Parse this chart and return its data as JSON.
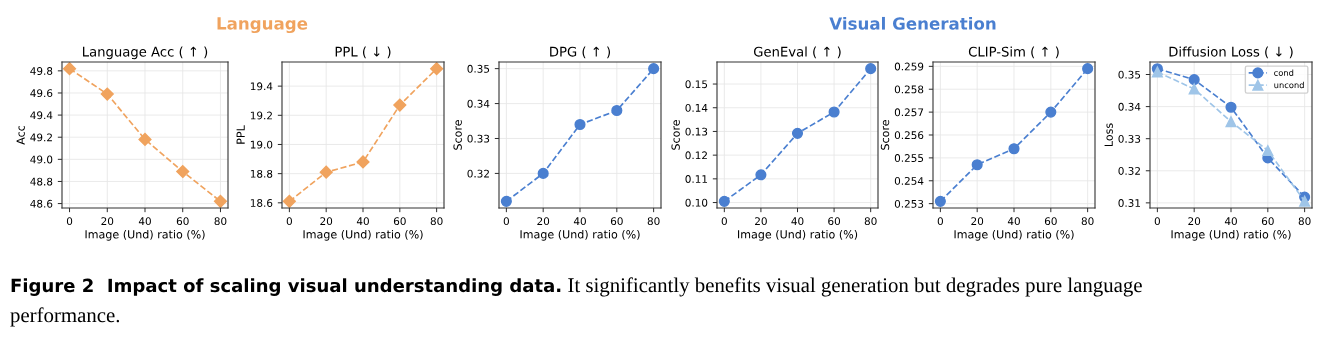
{
  "chart_data": [
    {
      "type": "line",
      "title": "Language Acc ( ↑ )",
      "xlabel": "Image (Und) ratio (%)",
      "ylabel": "Acc",
      "x": [
        0,
        20,
        40,
        60,
        80
      ],
      "xlim": [
        -4,
        84
      ],
      "xticks": [
        0,
        20,
        40,
        60,
        80
      ],
      "ylim": [
        48.56,
        49.88
      ],
      "yticks": [
        48.6,
        48.8,
        {
          "value": 49.0,
          "label": "49.0"
        },
        49.2,
        49.4,
        49.6,
        49.8
      ],
      "grid": true,
      "line_style": "dashed",
      "series": [
        {
          "color": "#f0a35e",
          "marker": "diamond",
          "values": [
            49.82,
            49.59,
            49.18,
            48.89,
            48.62
          ]
        }
      ],
      "annotations": [
        "Figure 2  Impact of scaling visual understanding data.",
        "It significantly benefits visual generation but degrades pure language",
        "performance."
      ]
    },
    {
      "type": "line",
      "title": "PPL ( ↓ )",
      "xlabel": "Image (Und) ratio (%)",
      "ylabel": "PPL",
      "x": [
        0,
        20,
        40,
        60,
        80
      ],
      "xlim": [
        -4,
        84
      ],
      "xticks": [
        0,
        20,
        40,
        60,
        80
      ],
      "ylim": [
        18.5645,
        19.5655
      ],
      "yticks": [
        18.6,
        18.8,
        {
          "value": 19.0,
          "label": "19.0"
        },
        19.2,
        19.4
      ],
      "grid": true,
      "line_style": "dashed",
      "series": [
        {
          "color": "#f0a35e",
          "marker": "diamond",
          "values": [
            18.61,
            18.81,
            18.88,
            19.27,
            19.52
          ]
        }
      ],
      "annotations": [
        "Language"
      ]
    },
    {
      "type": "line",
      "title": "DPG ( ↑ )",
      "xlabel": "Image (Und) ratio (%)",
      "ylabel": "Score",
      "x": [
        0,
        20,
        40,
        60,
        80
      ],
      "xlim": [
        -4,
        84
      ],
      "xticks": [
        0,
        20,
        40,
        60,
        80
      ],
      "ylim": [
        0.3101,
        0.3519
      ],
      "yticks": [
        0.32,
        0.33,
        0.34,
        0.35
      ],
      "grid": true,
      "line_style": "dashed",
      "series": [
        {
          "color": "#4a7fd0",
          "marker": "circle",
          "values": [
            0.312,
            0.32,
            0.334,
            0.338,
            0.35
          ]
        }
      ]
    },
    {
      "type": "line",
      "title": "GenEval ( ↑ )",
      "xlabel": "Image (Und) ratio (%)",
      "ylabel": "Score",
      "x": [
        0,
        20,
        40,
        60,
        80
      ],
      "xlim": [
        -4,
        84
      ],
      "xticks": [
        0,
        20,
        40,
        60,
        80
      ],
      "ylim": [
        0.0977,
        0.1593
      ],
      "yticks": [
        {
          "value": 0.1,
          "label": "0.10"
        },
        0.11,
        0.12,
        0.13,
        0.14,
        0.15
      ],
      "grid": true,
      "line_style": "dashed",
      "series": [
        {
          "color": "#4a7fd0",
          "marker": "circle",
          "values": [
            0.1005,
            0.1117,
            0.1292,
            0.1382,
            0.1565
          ]
        }
      ]
    },
    {
      "type": "line",
      "title": "CLIP-Sim ( ↑ )",
      "xlabel": "Image (Und) ratio (%)",
      "ylabel": "Score",
      "x": [
        0,
        20,
        40,
        60,
        80
      ],
      "xlim": [
        -4,
        84
      ],
      "xticks": [
        0,
        20,
        40,
        60,
        80
      ],
      "ylim": [
        0.25281,
        0.25919
      ],
      "yticks": [
        0.253,
        0.254,
        0.255,
        0.256,
        0.257,
        0.258,
        0.259
      ],
      "grid": true,
      "line_style": "dashed",
      "series": [
        {
          "color": "#4a7fd0",
          "marker": "circle",
          "values": [
            0.2531,
            0.2547,
            0.2554,
            0.257,
            0.2589
          ]
        }
      ],
      "annotations": [
        "Visual Generation"
      ]
    },
    {
      "type": "line",
      "title": "Diffusion Loss ( ↓ )",
      "xlabel": "Image (Und) ratio (%)",
      "ylabel": "Loss",
      "x": [
        0,
        20,
        40,
        60,
        80
      ],
      "xlim": [
        -4,
        84
      ],
      "xticks": [
        0,
        20,
        40,
        60,
        80
      ],
      "ylim": [
        0.3084,
        0.3539
      ],
      "yticks": [
        0.31,
        0.32,
        0.33,
        0.34,
        0.35
      ],
      "grid": true,
      "line_style": "dashed",
      "legend": "top right",
      "series": [
        {
          "name": "cond",
          "color": "#4a7fd0",
          "marker": "circle",
          "values": [
            0.3518,
            0.3484,
            0.3398,
            0.324,
            0.3118
          ]
        },
        {
          "name": "uncond",
          "color": "#9fc5e8",
          "marker": "triangle",
          "values": [
            0.3508,
            0.3455,
            0.3353,
            0.3263,
            0.3105
          ]
        }
      ]
    }
  ]
}
